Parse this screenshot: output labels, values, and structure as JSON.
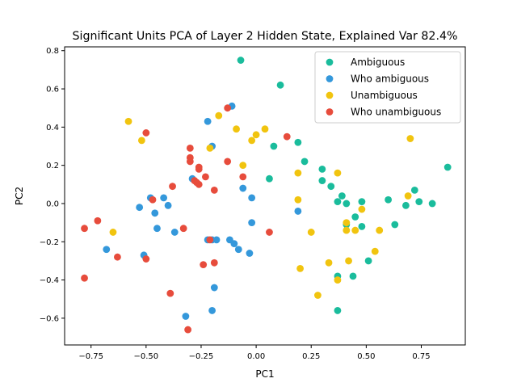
{
  "chart_data": {
    "type": "scatter",
    "title": "Significant Units PCA of Layer 2 Hidden State, Explained Var 82.4%",
    "xlabel": "PC1",
    "ylabel": "PC2",
    "xlim": [
      -0.87,
      0.95
    ],
    "ylim": [
      -0.74,
      0.82
    ],
    "xticks": [
      -0.75,
      -0.5,
      -0.25,
      0.0,
      0.25,
      0.5,
      0.75
    ],
    "xtick_labels": [
      "−0.75",
      "−0.50",
      "−0.25",
      "0.00",
      "0.25",
      "0.50",
      "0.75"
    ],
    "yticks": [
      -0.6,
      -0.4,
      -0.2,
      0.0,
      0.2,
      0.4,
      0.6,
      0.8
    ],
    "ytick_labels": [
      "−0.6",
      "−0.4",
      "−0.2",
      "0.0",
      "0.2",
      "0.4",
      "0.6",
      "0.8"
    ],
    "grid": false,
    "legend_position": "upper right",
    "series": [
      {
        "name": "Ambiguous",
        "color": "#1abc9c",
        "points": [
          [
            -0.07,
            0.75
          ],
          [
            0.11,
            0.62
          ],
          [
            0.19,
            0.32
          ],
          [
            0.08,
            0.3
          ],
          [
            0.22,
            0.22
          ],
          [
            0.87,
            0.19
          ],
          [
            0.3,
            0.18
          ],
          [
            0.3,
            0.12
          ],
          [
            0.06,
            0.13
          ],
          [
            0.34,
            0.09
          ],
          [
            0.72,
            0.07
          ],
          [
            0.39,
            0.04
          ],
          [
            0.37,
            0.01
          ],
          [
            0.48,
            0.01
          ],
          [
            0.6,
            0.02
          ],
          [
            0.41,
            0.0
          ],
          [
            0.68,
            -0.01
          ],
          [
            0.74,
            0.01
          ],
          [
            0.8,
            0.0
          ],
          [
            0.45,
            -0.07
          ],
          [
            0.63,
            -0.11
          ],
          [
            0.41,
            -0.11
          ],
          [
            0.48,
            -0.12
          ],
          [
            0.51,
            -0.3
          ],
          [
            0.37,
            -0.38
          ],
          [
            0.44,
            -0.38
          ],
          [
            0.37,
            -0.56
          ]
        ]
      },
      {
        "name": "Who ambiguous",
        "color": "#3498db",
        "points": [
          [
            -0.11,
            0.51
          ],
          [
            -0.22,
            0.43
          ],
          [
            -0.2,
            0.3
          ],
          [
            -0.29,
            0.13
          ],
          [
            -0.48,
            0.03
          ],
          [
            -0.42,
            0.03
          ],
          [
            -0.06,
            0.08
          ],
          [
            -0.02,
            0.03
          ],
          [
            -0.4,
            -0.01
          ],
          [
            -0.53,
            -0.02
          ],
          [
            -0.46,
            -0.05
          ],
          [
            -0.45,
            -0.13
          ],
          [
            -0.37,
            -0.15
          ],
          [
            -0.02,
            -0.1
          ],
          [
            0.19,
            -0.04
          ],
          [
            -0.22,
            -0.19
          ],
          [
            -0.2,
            -0.19
          ],
          [
            -0.18,
            -0.19
          ],
          [
            -0.12,
            -0.19
          ],
          [
            -0.1,
            -0.21
          ],
          [
            -0.08,
            -0.24
          ],
          [
            -0.03,
            -0.26
          ],
          [
            -0.68,
            -0.24
          ],
          [
            -0.51,
            -0.27
          ],
          [
            -0.19,
            -0.44
          ],
          [
            -0.32,
            -0.59
          ],
          [
            -0.2,
            -0.56
          ]
        ]
      },
      {
        "name": "Unambiguous",
        "color": "#f1c40f",
        "points": [
          [
            -0.58,
            0.43
          ],
          [
            -0.52,
            0.33
          ],
          [
            -0.17,
            0.46
          ],
          [
            -0.09,
            0.39
          ],
          [
            0.04,
            0.39
          ],
          [
            0.0,
            0.36
          ],
          [
            -0.02,
            0.33
          ],
          [
            0.7,
            0.34
          ],
          [
            -0.21,
            0.29
          ],
          [
            -0.06,
            0.2
          ],
          [
            0.19,
            0.16
          ],
          [
            0.37,
            0.16
          ],
          [
            0.69,
            0.04
          ],
          [
            0.19,
            0.02
          ],
          [
            0.48,
            -0.03
          ],
          [
            0.41,
            -0.1
          ],
          [
            0.41,
            -0.14
          ],
          [
            0.45,
            -0.14
          ],
          [
            0.56,
            -0.14
          ],
          [
            0.25,
            -0.15
          ],
          [
            -0.65,
            -0.15
          ],
          [
            0.54,
            -0.25
          ],
          [
            0.42,
            -0.3
          ],
          [
            0.33,
            -0.31
          ],
          [
            0.2,
            -0.34
          ],
          [
            0.37,
            -0.4
          ],
          [
            0.28,
            -0.48
          ]
        ]
      },
      {
        "name": "Who unambiguous",
        "color": "#e74c3c",
        "points": [
          [
            -0.13,
            0.5
          ],
          [
            -0.5,
            0.37
          ],
          [
            0.14,
            0.35
          ],
          [
            -0.3,
            0.29
          ],
          [
            -0.3,
            0.24
          ],
          [
            -0.3,
            0.22
          ],
          [
            -0.13,
            0.22
          ],
          [
            -0.26,
            0.19
          ],
          [
            -0.26,
            0.18
          ],
          [
            -0.23,
            0.14
          ],
          [
            -0.06,
            0.14
          ],
          [
            -0.28,
            0.12
          ],
          [
            -0.27,
            0.11
          ],
          [
            -0.26,
            0.1
          ],
          [
            -0.38,
            0.09
          ],
          [
            -0.19,
            0.07
          ],
          [
            -0.47,
            0.02
          ],
          [
            -0.72,
            -0.09
          ],
          [
            -0.78,
            -0.13
          ],
          [
            -0.33,
            -0.13
          ],
          [
            0.06,
            -0.15
          ],
          [
            -0.21,
            -0.19
          ],
          [
            -0.63,
            -0.28
          ],
          [
            -0.5,
            -0.29
          ],
          [
            -0.19,
            -0.31
          ],
          [
            -0.24,
            -0.32
          ],
          [
            -0.78,
            -0.39
          ],
          [
            -0.39,
            -0.47
          ],
          [
            -0.31,
            -0.66
          ]
        ]
      }
    ]
  }
}
